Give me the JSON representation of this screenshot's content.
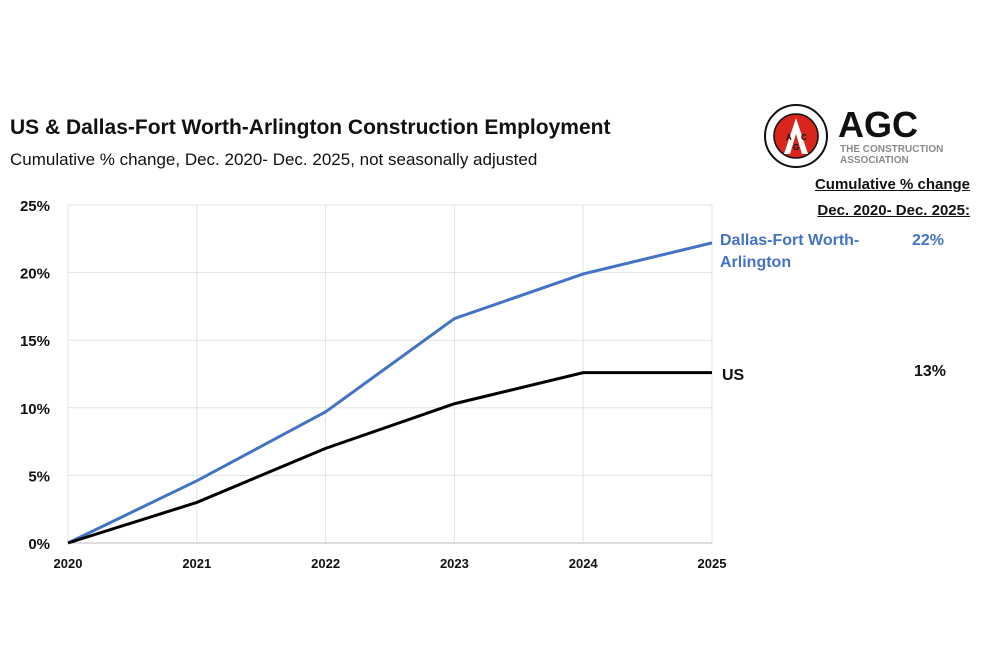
{
  "chart_data": {
    "type": "line",
    "title": "US & Dallas-Fort Worth-Arlington Construction Employment",
    "subtitle": "Cumulative % change, Dec. 2020- Dec. 2025, not seasonally adjusted",
    "x": [
      "2020",
      "2021",
      "2022",
      "2023",
      "2024",
      "2025"
    ],
    "ylim": [
      0,
      25
    ],
    "yticks": [
      "0%",
      "5%",
      "10%",
      "15%",
      "20%",
      "25%"
    ],
    "grid": true,
    "series": [
      {
        "name": "Dallas-Fort Worth-Arlington",
        "color": "#4472c4",
        "values": [
          0,
          4.6,
          9.7,
          16.6,
          19.9,
          22.2
        ],
        "end_value_label": "22%"
      },
      {
        "name": "US",
        "color": "#000000",
        "values": [
          0,
          3.0,
          7.0,
          10.3,
          12.6,
          12.6
        ],
        "end_value_label": "13%"
      }
    ],
    "side_header": [
      "Cumulative % change",
      "Dec. 2020- Dec. 2025:"
    ]
  },
  "logo": {
    "text": "AGC",
    "tagline": "THE CONSTRUCTION ASSOCIATION",
    "seal_text": "ASSOCIATED GENERAL CONTRACTORS OF AMERICA"
  }
}
